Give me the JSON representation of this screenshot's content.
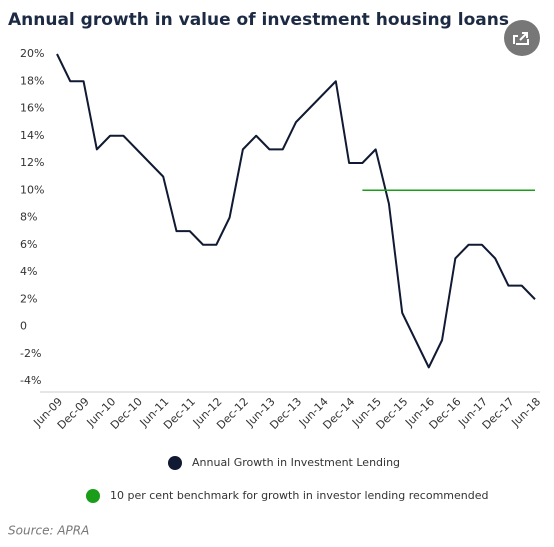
{
  "chart_data": {
    "type": "line",
    "title": "Annual growth in value of investment housing loans",
    "source": "Source: APRA",
    "categories": [
      "Jun-09",
      null,
      "Dec-09",
      null,
      "Jun-10",
      null,
      "Dec-10",
      null,
      "Jun-11",
      null,
      "Dec-11",
      null,
      "Jun-12",
      null,
      "Dec-12",
      null,
      "Jun-13",
      null,
      "Dec-13",
      null,
      "Jun-14",
      null,
      "Dec-14",
      null,
      "Jun-15",
      null,
      "Dec-15",
      null,
      "Jun-16",
      null,
      "Dec-16",
      null,
      "Jun-17",
      null,
      "Dec-17",
      null,
      "Jun-18"
    ],
    "series": [
      {
        "name": "Annual Growth in Investment Lending",
        "color": "#111a33",
        "values": [
          20,
          18,
          18,
          13,
          14,
          14,
          13,
          12,
          11,
          7,
          7,
          6,
          6,
          8,
          13,
          14,
          13,
          13,
          15,
          16,
          17,
          18,
          12,
          12,
          13,
          9,
          1,
          -1,
          -3,
          -1,
          5,
          6,
          6,
          5,
          3,
          3,
          2
        ]
      },
      {
        "name": "10 per cent benchmark for growth in investor lending recommended",
        "color": "#1a9e1a",
        "values": [
          null,
          null,
          null,
          null,
          null,
          null,
          null,
          null,
          null,
          null,
          null,
          null,
          null,
          null,
          null,
          null,
          null,
          null,
          null,
          null,
          null,
          null,
          null,
          10,
          10,
          10,
          10,
          10,
          10,
          10,
          10,
          10,
          10,
          10,
          10,
          10,
          10
        ]
      }
    ],
    "ylim": [
      -4,
      20
    ],
    "yticks": [
      {
        "value": 20,
        "label": "20%"
      },
      {
        "value": 18,
        "label": "18%"
      },
      {
        "value": 16,
        "label": "16%"
      },
      {
        "value": 14,
        "label": "14%"
      },
      {
        "value": 12,
        "label": "12%"
      },
      {
        "value": 10,
        "label": "10%"
      },
      {
        "value": 8,
        "label": "8%"
      },
      {
        "value": 6,
        "label": "6%"
      },
      {
        "value": 4,
        "label": "4%"
      },
      {
        "value": 2,
        "label": "2%"
      },
      0,
      {
        "value": -2,
        "label": "-2%"
      },
      {
        "value": -4,
        "label": "-4%"
      }
    ],
    "grid": false
  }
}
